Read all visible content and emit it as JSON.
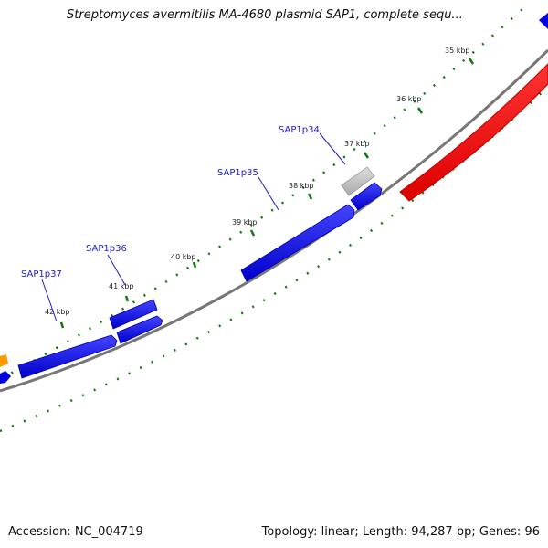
{
  "title": "Streptomyces avermitilis MA-4680 plasmid SAP1, complete sequ...",
  "footer": {
    "accession": "Accession: NC_004719",
    "summary": "Topology: linear; Length: 94,287 bp; Genes: 96"
  },
  "colors": {
    "gene_blue": "#0000dd",
    "gene_red": "#ee0000",
    "gene_grey": "#bbbbbb",
    "gene_orange": "#ff9900",
    "backbone": "#777777",
    "tick_green": "#117711",
    "label_blue": "#1a1acc"
  },
  "scale_labels": [
    "35 kbp",
    "36 kbp",
    "37 kbp",
    "38 kbp",
    "39 kbp",
    "40 kbp",
    "41 kbp",
    "42 kbp"
  ],
  "gene_labels": [
    "SAP1p34",
    "SAP1p35",
    "SAP1p36",
    "SAP1p37"
  ]
}
